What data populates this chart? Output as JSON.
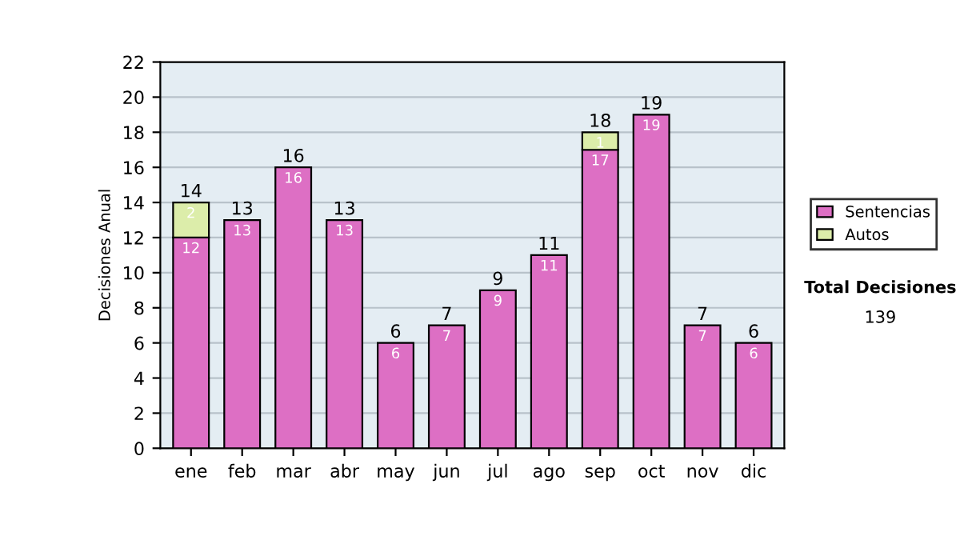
{
  "chart_data": {
    "type": "bar",
    "stacked": true,
    "ylabel": "Decisiones Anual",
    "categories": [
      "ene",
      "feb",
      "mar",
      "abr",
      "may",
      "jun",
      "jul",
      "ago",
      "sep",
      "oct",
      "nov",
      "dic"
    ],
    "series": [
      {
        "name": "Sentencias",
        "color": "#dd6fc4",
        "values": [
          12,
          13,
          16,
          13,
          6,
          7,
          9,
          11,
          17,
          19,
          7,
          6
        ],
        "value_labels": [
          "12",
          "13",
          "16",
          "13",
          "6",
          "7",
          "9",
          "11",
          "17",
          "19",
          "7",
          "6"
        ]
      },
      {
        "name": "Autos",
        "color": "#dcedaa",
        "values": [
          2,
          null,
          null,
          null,
          null,
          null,
          null,
          null,
          1,
          null,
          null,
          null
        ],
        "value_labels": [
          "2",
          null,
          null,
          null,
          null,
          null,
          null,
          null,
          "1",
          null,
          null,
          null
        ]
      }
    ],
    "totals": [
      "14",
      "13",
      "16",
      "13",
      "6",
      "7",
      "9",
      "11",
      "18",
      "19",
      "7",
      "6"
    ],
    "ylim": [
      0,
      22
    ],
    "yticks": [
      0,
      2,
      4,
      6,
      8,
      10,
      12,
      14,
      16,
      18,
      20,
      22
    ],
    "grid": "y",
    "legend": "right",
    "annotations": [
      "Total Decisiones",
      "139"
    ]
  }
}
